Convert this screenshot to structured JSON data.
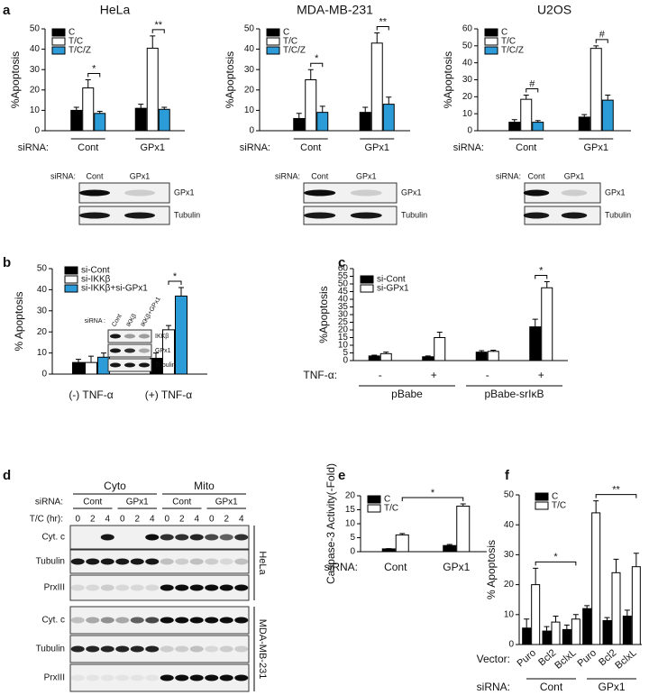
{
  "panel_labels": [
    "a",
    "b",
    "c",
    "d",
    "e",
    "f"
  ],
  "chart_data": [
    {
      "type": "bar",
      "title": "HeLa",
      "ylabel": "%Apoptosis",
      "ylim": [
        0,
        50
      ],
      "yticks": [
        0,
        10,
        20,
        30,
        40,
        50
      ],
      "xlabel": "siRNA:",
      "categories": [
        "Cont",
        "GPx1"
      ],
      "series": [
        {
          "name": "C",
          "color": "#000000",
          "values": [
            10,
            11
          ],
          "errors": [
            1.5,
            2
          ]
        },
        {
          "name": "T/C",
          "color": "#ffffff",
          "values": [
            21,
            40.5
          ],
          "errors": [
            4,
            6
          ]
        },
        {
          "name": "T/C/Z",
          "color": "#2b9cd8",
          "values": [
            8.5,
            10.5
          ],
          "errors": [
            1,
            1
          ]
        }
      ],
      "annotations": [
        "*",
        "**"
      ],
      "legend": "upper left"
    },
    {
      "type": "bar",
      "title": "MDA-MB-231",
      "ylabel": "%Apoptosis",
      "ylim": [
        0,
        50
      ],
      "yticks": [
        0,
        10,
        20,
        30,
        40,
        50
      ],
      "xlabel": "siRNA:",
      "categories": [
        "Cont",
        "GPx1"
      ],
      "series": [
        {
          "name": "C",
          "color": "#000000",
          "values": [
            6,
            9
          ],
          "errors": [
            2.5,
            2.5
          ]
        },
        {
          "name": "T/C",
          "color": "#ffffff",
          "values": [
            25,
            43
          ],
          "errors": [
            5,
            5
          ]
        },
        {
          "name": "T/C/Z",
          "color": "#2b9cd8",
          "values": [
            9,
            13
          ],
          "errors": [
            3,
            3.5
          ]
        }
      ],
      "annotations": [
        "*",
        "**"
      ],
      "legend": "upper left"
    },
    {
      "type": "bar",
      "title": "U2OS",
      "ylabel": "%Apoptosis",
      "ylim": [
        0,
        60
      ],
      "yticks": [
        0,
        10,
        20,
        30,
        40,
        50,
        60
      ],
      "xlabel": "siRNA:",
      "categories": [
        "Cont",
        "GPx1"
      ],
      "series": [
        {
          "name": "C",
          "color": "#000000",
          "values": [
            5,
            8
          ],
          "errors": [
            1.5,
            1.5
          ]
        },
        {
          "name": "T/C",
          "color": "#ffffff",
          "values": [
            18.5,
            48.5
          ],
          "errors": [
            2.5,
            1.5
          ]
        },
        {
          "name": "T/C/Z",
          "color": "#2b9cd8",
          "values": [
            5,
            18
          ],
          "errors": [
            1,
            3
          ]
        }
      ],
      "annotations": [
        "#",
        "#"
      ],
      "legend": "upper left"
    },
    {
      "type": "bar",
      "ylabel": "% Apoptosis",
      "ylim": [
        0,
        50
      ],
      "yticks": [
        0,
        10,
        20,
        30,
        40,
        50
      ],
      "categories": [
        "(-) TNF-α",
        "(+) TNF-α"
      ],
      "series": [
        {
          "name": "si-Cont",
          "color": "#000000",
          "values": [
            5.5,
            7.5
          ],
          "errors": [
            1.5,
            2.5
          ]
        },
        {
          "name": "si-IKKβ",
          "color": "#ffffff",
          "values": [
            5.5,
            21
          ],
          "errors": [
            3,
            2
          ]
        },
        {
          "name": "si-IKKβ+si-GPx1",
          "color": "#2b9cd8",
          "values": [
            8,
            37
          ],
          "errors": [
            2,
            4
          ]
        }
      ],
      "annotations": [
        "*"
      ],
      "legend": "upper left"
    },
    {
      "type": "bar",
      "ylabel": "%Apoptosis",
      "ylim": [
        0,
        60
      ],
      "yticks": [
        0,
        5,
        10,
        15,
        20,
        25,
        30,
        35,
        40,
        45,
        50,
        55,
        60
      ],
      "xlabel": "TNF-α:",
      "categories": [
        "-",
        "+",
        "-",
        "+"
      ],
      "groups": [
        "pBabe",
        "pBabe-srIκB"
      ],
      "series": [
        {
          "name": "si-Cont",
          "color": "#000000",
          "values": [
            3,
            2.5,
            5.5,
            22
          ],
          "errors": [
            0.5,
            0.5,
            1,
            5
          ]
        },
        {
          "name": "si-GPx1",
          "color": "#ffffff",
          "values": [
            4.5,
            15,
            6,
            47.5
          ],
          "errors": [
            1,
            3.5,
            0.8,
            4
          ]
        }
      ],
      "annotations": [
        "*"
      ],
      "legend": "upper left"
    },
    {
      "type": "bar",
      "ylabel": "Caspase-3 Activity(-Fold)",
      "ylim": [
        0,
        20
      ],
      "yticks": [
        0,
        5,
        10,
        15,
        20
      ],
      "xlabel": "siRNA:",
      "categories": [
        "Cont",
        "GPx1"
      ],
      "series": [
        {
          "name": "C",
          "color": "#000000",
          "values": [
            1,
            2.2
          ],
          "errors": [
            0.1,
            0.4
          ]
        },
        {
          "name": "T/C",
          "color": "#ffffff",
          "values": [
            6,
            16.3
          ],
          "errors": [
            0.5,
            0.8
          ]
        }
      ],
      "annotations": [
        "*"
      ],
      "legend": "upper left"
    },
    {
      "type": "bar",
      "ylabel": "% Apoptosis",
      "ylim": [
        0,
        50
      ],
      "yticks": [
        0,
        10,
        20,
        30,
        40,
        50
      ],
      "xlabel": "Vector:",
      "categories": [
        "Puro",
        "Bcl2",
        "BclxL",
        "Puro",
        "Bcl2",
        "BclxL"
      ],
      "groups": [
        "Cont",
        "GPx1"
      ],
      "group_xlabel": "siRNA:",
      "series": [
        {
          "name": "C",
          "color": "#000000",
          "values": [
            5.5,
            4.5,
            5,
            12,
            8,
            9.5
          ],
          "errors": [
            3,
            1.5,
            1.5,
            1,
            1,
            2
          ]
        },
        {
          "name": "T/C",
          "color": "#ffffff",
          "values": [
            20,
            7.5,
            8.5,
            44,
            24,
            26
          ],
          "errors": [
            5.5,
            2,
            1.5,
            4,
            4.5,
            4.5
          ]
        }
      ],
      "annotations": [
        "*",
        "**"
      ],
      "legend": "upper left"
    }
  ],
  "blots": {
    "a": [
      {
        "label": "siRNA:",
        "lanes": [
          "Cont",
          "GPx1"
        ],
        "rows": [
          "GPx1",
          "Tubulin"
        ]
      },
      {
        "label": "siRNA:",
        "lanes": [
          "Cont",
          "GPx1"
        ],
        "rows": [
          "GPx1",
          "Tubulin"
        ]
      },
      {
        "label": "siRNA:",
        "lanes": [
          "Cont",
          "GPx1"
        ],
        "rows": [
          "GPx1",
          "Tubulin"
        ]
      }
    ],
    "b": {
      "label": "siRNA :",
      "lanes": [
        "Cont",
        "IKKβ",
        "IKKβ+GPx1"
      ],
      "rows": [
        "IKKβ",
        "GPx1",
        "Tubulin"
      ]
    },
    "d": {
      "sections": [
        "Cyto",
        "Mito"
      ],
      "label": "siRNA:",
      "lanes": [
        "Cont",
        "GPx1",
        "Cont",
        "GPx1"
      ],
      "time_label": "T/C (hr):",
      "times": [
        0,
        2,
        4,
        0,
        2,
        4,
        0,
        2,
        4,
        0,
        2,
        4
      ],
      "cells": [
        {
          "name": "HeLa",
          "rows": [
            "Cyt. c",
            "Tubulin",
            "PrxIII"
          ]
        },
        {
          "name": "MDA-MB-231",
          "rows": [
            "Cyt. c",
            "Tubulin",
            "PrxIII"
          ]
        }
      ]
    }
  }
}
